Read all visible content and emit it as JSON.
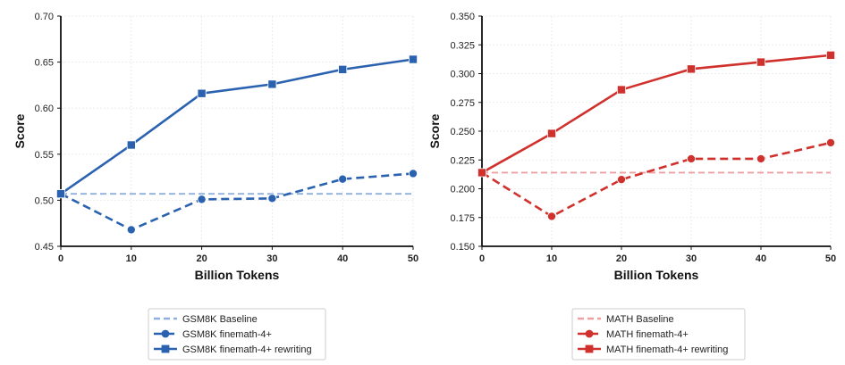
{
  "chart_data": [
    {
      "type": "line",
      "xlabel": "Billion Tokens",
      "ylabel": "Score",
      "x": [
        0,
        10,
        20,
        30,
        40,
        50
      ],
      "xlim": [
        0,
        50
      ],
      "ylim": [
        0.45,
        0.7
      ],
      "yticks": [
        "0.45",
        "0.50",
        "0.55",
        "0.60",
        "0.65",
        "0.70"
      ],
      "xticks": [
        "0",
        "10",
        "20",
        "30",
        "40",
        "50"
      ],
      "grid": true,
      "legend_position": "bottom-center",
      "color": "#2b62b0",
      "baseline_color": "#8fb0dc",
      "baseline": {
        "name": "GSM8K Baseline",
        "value": 0.507
      },
      "series": [
        {
          "name": "GSM8K finemath-4+",
          "marker": "circle",
          "style": "dashed",
          "values": [
            0.507,
            0.468,
            0.501,
            0.502,
            0.523,
            0.529
          ]
        },
        {
          "name": "GSM8K finemath-4+ rewriting",
          "marker": "square",
          "style": "solid",
          "values": [
            0.507,
            0.56,
            0.616,
            0.626,
            0.642,
            0.653
          ]
        }
      ]
    },
    {
      "type": "line",
      "xlabel": "Billion Tokens",
      "ylabel": "Score",
      "x": [
        0,
        10,
        20,
        30,
        40,
        50
      ],
      "xlim": [
        0,
        50
      ],
      "ylim": [
        0.15,
        0.35
      ],
      "yticks": [
        "0.150",
        "0.175",
        "0.200",
        "0.225",
        "0.250",
        "0.275",
        "0.300",
        "0.325",
        "0.350"
      ],
      "xticks": [
        "0",
        "10",
        "20",
        "30",
        "40",
        "50"
      ],
      "grid": true,
      "legend_position": "bottom-center",
      "color": "#d0312d",
      "baseline_color": "#eea0a0",
      "baseline": {
        "name": "MATH Baseline",
        "value": 0.214
      },
      "series": [
        {
          "name": "MATH finemath-4+",
          "marker": "circle",
          "style": "dashed",
          "values": [
            0.214,
            0.176,
            0.208,
            0.226,
            0.226,
            0.24
          ]
        },
        {
          "name": "MATH finemath-4+ rewriting",
          "marker": "square",
          "style": "solid",
          "values": [
            0.214,
            0.248,
            0.286,
            0.304,
            0.31,
            0.316
          ]
        }
      ]
    }
  ]
}
